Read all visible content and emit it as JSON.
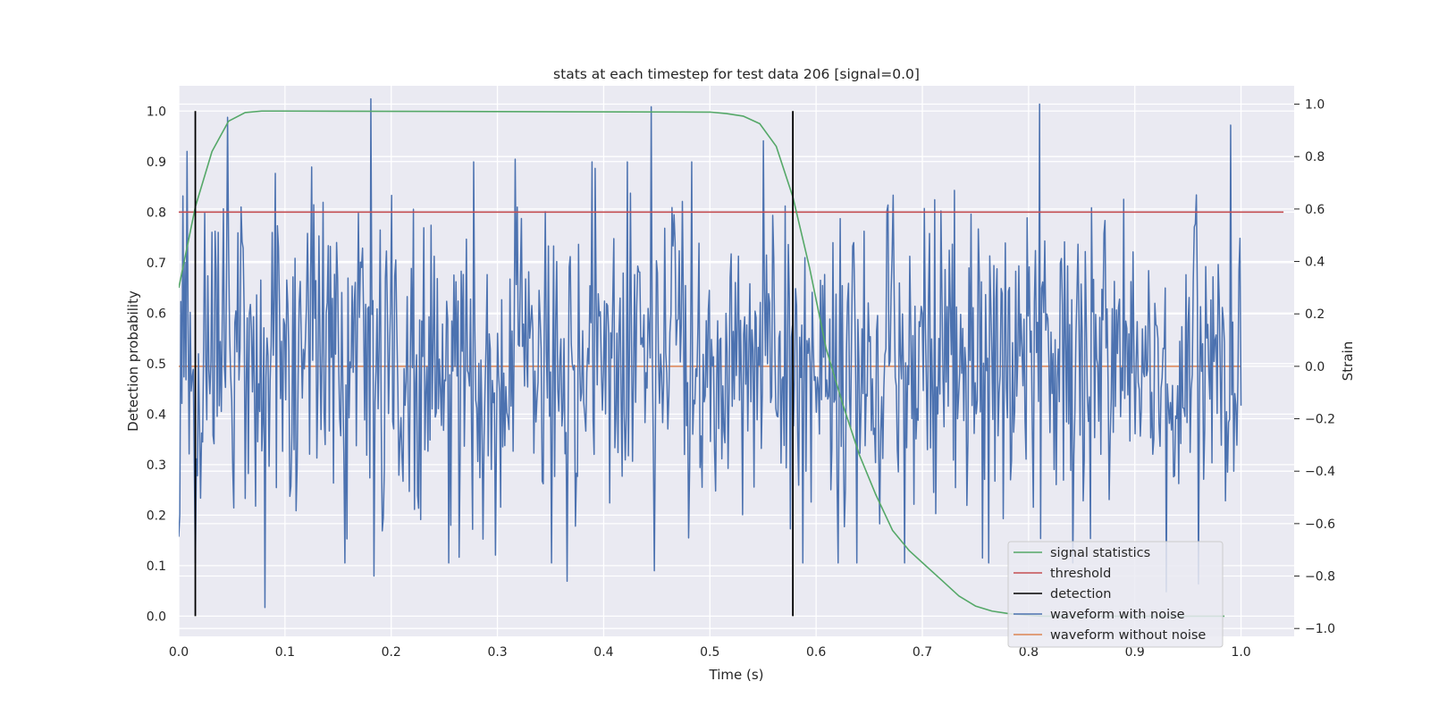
{
  "chart_data": {
    "type": "line",
    "title": "stats at each timestep for test data 206 [signal=0.0]",
    "xlabel": "Time (s)",
    "ylabel": "Detection probability",
    "y2label": "Strain",
    "xlim": [
      0.0,
      1.05
    ],
    "ylim": [
      -0.04,
      1.05
    ],
    "y2lim": [
      -1.03,
      1.07
    ],
    "xticks": [
      "0.0",
      "0.1",
      "0.2",
      "0.3",
      "0.4",
      "0.5",
      "0.6",
      "0.7",
      "0.8",
      "0.9",
      "1.0"
    ],
    "yticks": [
      "0.0",
      "0.1",
      "0.2",
      "0.3",
      "0.4",
      "0.5",
      "0.6",
      "0.7",
      "0.8",
      "0.9",
      "1.0"
    ],
    "y2ticks": [
      "−1.0",
      "−0.8",
      "−0.6",
      "−0.4",
      "−0.2",
      "0.0",
      "0.2",
      "0.4",
      "0.6",
      "0.8",
      "1.0"
    ],
    "grid": true,
    "legend_position": "lower-right",
    "legend": [
      "signal statistics",
      "threshold",
      "detection",
      "waveform with noise",
      "waveform without noise"
    ],
    "series": [
      {
        "name": "signal statistics",
        "axis": "left",
        "color": "#55a868",
        "x": [
          0.0,
          0.0156,
          0.0313,
          0.0469,
          0.0625,
          0.0781,
          0.0938,
          0.5,
          0.5156,
          0.5313,
          0.5469,
          0.5625,
          0.5781,
          0.5938,
          0.6094,
          0.625,
          0.6406,
          0.6563,
          0.6719,
          0.6875,
          0.7031,
          0.7188,
          0.7344,
          0.75,
          0.7656,
          0.7813,
          0.7969,
          0.8125,
          0.9844
        ],
        "y": [
          0.65,
          0.81,
          0.92,
          0.98,
          0.997,
          1.0,
          1.0,
          0.998,
          0.995,
          0.99,
          0.975,
          0.93,
          0.83,
          0.69,
          0.53,
          0.42,
          0.32,
          0.24,
          0.17,
          0.13,
          0.1,
          0.07,
          0.04,
          0.02,
          0.01,
          0.005,
          0.002,
          0.0,
          0.0
        ]
      },
      {
        "name": "threshold",
        "axis": "left",
        "color": "#c44e52",
        "x": [
          0.0,
          1.04
        ],
        "y": [
          0.8,
          0.8
        ]
      },
      {
        "name": "detection",
        "axis": "left",
        "color": "#000000",
        "type": "vlines",
        "x": [
          0.0156,
          0.5781
        ],
        "ymin": 0.0,
        "ymax": 1.0
      },
      {
        "name": "waveform with noise",
        "axis": "right",
        "color": "#4c72b0",
        "x_start": 0.0,
        "x_end": 1.0,
        "points": 1024,
        "peaks": [
          {
            "x": 0.0,
            "y": -0.65
          },
          {
            "x": 0.004,
            "y": 0.65
          },
          {
            "x": 0.008,
            "y": 0.82
          },
          {
            "x": 0.046,
            "y": 0.95
          },
          {
            "x": 0.081,
            "y": -0.92
          },
          {
            "x": 0.125,
            "y": 0.76
          },
          {
            "x": 0.181,
            "y": 1.02
          },
          {
            "x": 0.184,
            "y": -0.8
          },
          {
            "x": 0.298,
            "y": -0.72
          },
          {
            "x": 0.317,
            "y": 0.79
          },
          {
            "x": 0.366,
            "y": -0.82
          },
          {
            "x": 0.445,
            "y": 0.99
          },
          {
            "x": 0.448,
            "y": -0.78
          },
          {
            "x": 0.55,
            "y": 0.86
          },
          {
            "x": 0.576,
            "y": -0.62
          },
          {
            "x": 0.81,
            "y": 1.0
          },
          {
            "x": 0.93,
            "y": -0.86
          },
          {
            "x": 0.96,
            "y": -0.83
          },
          {
            "x": 0.99,
            "y": 0.92
          },
          {
            "x": 0.993,
            "y": -0.4
          },
          {
            "x": 1.0,
            "y": -0.15
          }
        ]
      },
      {
        "name": "waveform without noise",
        "axis": "right",
        "color": "#dd8452",
        "x": [
          0.0,
          1.0
        ],
        "y": [
          0.0,
          0.0
        ]
      }
    ]
  }
}
